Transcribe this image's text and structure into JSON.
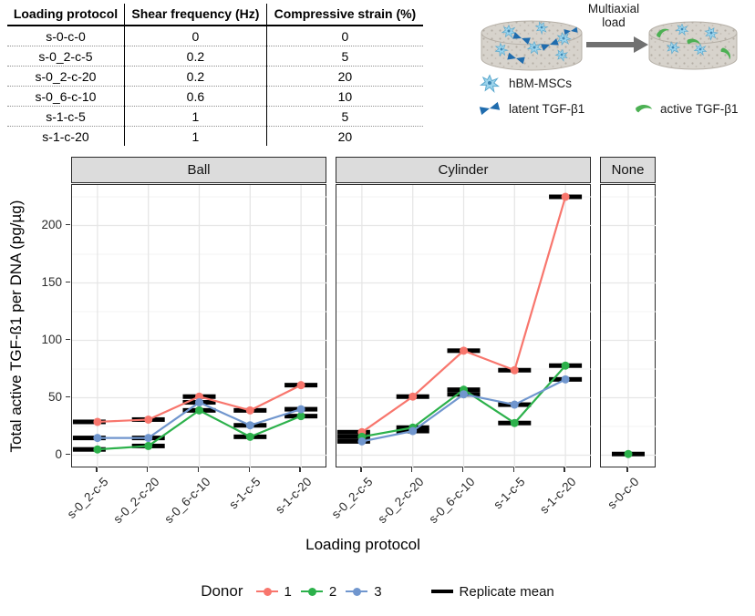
{
  "table": {
    "headers": [
      "Loading protocol",
      "Shear frequency (Hz)",
      "Compressive strain (%)"
    ],
    "rows": [
      [
        "s-0-c-0",
        "0",
        "0"
      ],
      [
        "s-0_2-c-5",
        "0.2",
        "5"
      ],
      [
        "s-0_2-c-20",
        "0.2",
        "20"
      ],
      [
        "s-0_6-c-10",
        "0.6",
        "10"
      ],
      [
        "s-1-c-5",
        "1",
        "5"
      ],
      [
        "s-1-c-20",
        "1",
        "20"
      ]
    ]
  },
  "illustration": {
    "arrow_label": "Multiaxial\nload",
    "legend": [
      {
        "icon": "msc-cell-icon",
        "label": "hBM-MSCs",
        "color": "#9dd4ec"
      },
      {
        "icon": "latent-tgfb-icon",
        "label": "latent TGF-β1",
        "color": "#1f6cae"
      },
      {
        "icon": "active-tgfb-icon",
        "label": "active TGF-β1",
        "color": "#4cb053"
      }
    ]
  },
  "chart_data": {
    "type": "line",
    "title": "",
    "xlabel": "Loading protocol",
    "ylabel": "Total active TGF-ß1 per DNA (pg/µg)",
    "ylim": [
      -10,
      235
    ],
    "yticks": [
      0,
      50,
      100,
      150,
      200
    ],
    "grid": "major+minor",
    "legend": {
      "title": "Donor",
      "position": "bottom",
      "entries": [
        {
          "name": "1",
          "color": "#F8766D"
        },
        {
          "name": "2",
          "color": "#2CB14B"
        },
        {
          "name": "3",
          "color": "#7096CE"
        }
      ],
      "extra": {
        "label": "Replicate mean",
        "color": "#000000"
      }
    },
    "facets": [
      {
        "label": "Ball",
        "categories": [
          "s-0_2-c-5",
          "s-0_2-c-20",
          "s-0_6-c-10",
          "s-1-c-5",
          "s-1-c-20"
        ],
        "series": [
          {
            "donor": "1",
            "color": "#F8766D",
            "values": [
              29,
              31,
              51,
              39,
              61
            ],
            "mean_dx": [
              -9,
              0,
              0,
              0,
              0
            ]
          },
          {
            "donor": "2",
            "color": "#2CB14B",
            "values": [
              5,
              8,
              39,
              16,
              34
            ],
            "mean_dx": [
              -9,
              0,
              0,
              0,
              0
            ]
          },
          {
            "donor": "3",
            "color": "#7096CE",
            "values": [
              15,
              15,
              46,
              26,
              40
            ],
            "mean_dx": [
              -9,
              0,
              0,
              0,
              0
            ]
          }
        ]
      },
      {
        "label": "Cylinder",
        "categories": [
          "s-0_2-c-5",
          "s-0_2-c-20",
          "s-0_6-c-10",
          "s-1-c-5",
          "s-1-c-20"
        ],
        "series": [
          {
            "donor": "1",
            "color": "#F8766D",
            "values": [
              20,
              51,
              91,
              74,
              225
            ],
            "mean_dx": [
              -9,
              0,
              0,
              0,
              0
            ]
          },
          {
            "donor": "2",
            "color": "#2CB14B",
            "values": [
              16,
              24,
              57,
              28,
              78
            ],
            "mean_dx": [
              -9,
              0,
              0,
              0,
              0
            ]
          },
          {
            "donor": "3",
            "color": "#7096CE",
            "values": [
              12,
              21,
              53,
              44,
              66
            ],
            "mean_dx": [
              -9,
              0,
              0,
              0,
              0
            ]
          }
        ]
      },
      {
        "label": "None",
        "categories": [
          "s-0-c-0"
        ],
        "series": [
          {
            "donor": "2",
            "color": "#2CB14B",
            "values": [
              1
            ],
            "mean_dx": [
              0
            ]
          }
        ]
      }
    ]
  }
}
